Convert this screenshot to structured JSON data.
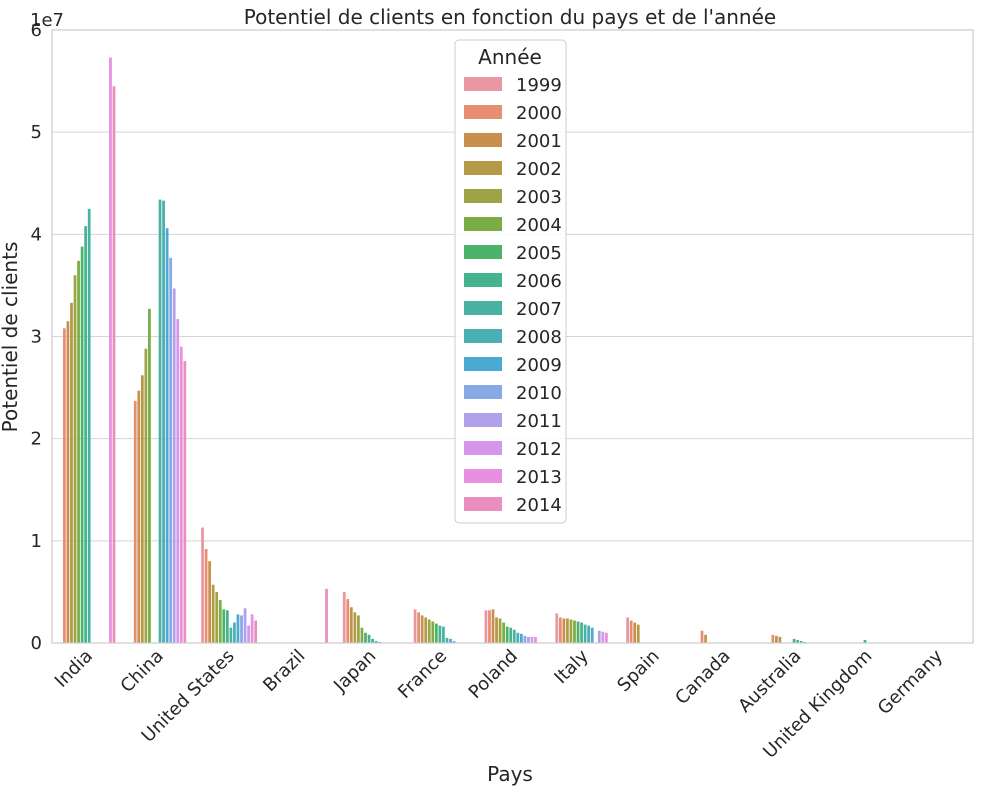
{
  "chart_data": {
    "type": "bar",
    "title": "Potentiel de clients en fonction du pays et de l'année",
    "xlabel": "Pays",
    "ylabel": "Potentiel de clients",
    "y_offset_text": "1e7",
    "ylim": [
      0,
      60000000
    ],
    "y_ticks": [
      0,
      10000000,
      20000000,
      30000000,
      40000000,
      50000000,
      60000000
    ],
    "y_tick_labels": [
      "0",
      "1",
      "2",
      "3",
      "4",
      "5",
      "6"
    ],
    "grid": "horizontal",
    "legend_position": "top-center",
    "legend_title": "Année",
    "categories": [
      "India",
      "China",
      "United States",
      "Brazil",
      "Japan",
      "France",
      "Poland",
      "Italy",
      "Spain",
      "Canada",
      "Australia",
      "United Kingdom",
      "Germany"
    ],
    "series": [
      {
        "name": "1999",
        "color": "#ea96a3",
        "values": [
          0,
          0,
          11300000,
          0,
          5000000,
          3300000,
          3200000,
          2900000,
          2500000,
          0,
          0,
          0,
          0
        ]
      },
      {
        "name": "2000",
        "color": "#e68e71",
        "values": [
          30800000,
          23700000,
          9200000,
          0,
          4300000,
          3000000,
          3200000,
          2500000,
          2200000,
          1200000,
          800000,
          0,
          0
        ]
      },
      {
        "name": "2001",
        "color": "#c88f4e",
        "values": [
          31500000,
          24700000,
          8000000,
          0,
          3500000,
          2700000,
          3300000,
          2400000,
          2000000,
          800000,
          700000,
          0,
          0
        ]
      },
      {
        "name": "2002",
        "color": "#b29a46",
        "values": [
          33300000,
          26200000,
          5700000,
          0,
          3000000,
          2500000,
          2500000,
          2400000,
          1800000,
          0,
          600000,
          0,
          0
        ]
      },
      {
        "name": "2003",
        "color": "#9da443",
        "values": [
          36000000,
          28800000,
          5000000,
          0,
          2700000,
          2300000,
          2400000,
          2300000,
          0,
          0,
          0,
          0,
          0
        ]
      },
      {
        "name": "2004",
        "color": "#7cac44",
        "values": [
          37400000,
          32700000,
          4200000,
          0,
          1500000,
          2100000,
          2000000,
          2200000,
          0,
          0,
          0,
          0,
          0
        ]
      },
      {
        "name": "2005",
        "color": "#4bb36a",
        "values": [
          38800000,
          0,
          3300000,
          0,
          1000000,
          1900000,
          1600000,
          2100000,
          0,
          0,
          0,
          0,
          0
        ]
      },
      {
        "name": "2006",
        "color": "#47b38e",
        "values": [
          40800000,
          0,
          3200000,
          0,
          800000,
          1700000,
          1500000,
          2000000,
          0,
          0,
          400000,
          300000,
          0
        ]
      },
      {
        "name": "2007",
        "color": "#49b2a2",
        "values": [
          42500000,
          43400000,
          1500000,
          0,
          400000,
          1600000,
          1300000,
          1800000,
          0,
          0,
          300000,
          0,
          0
        ]
      },
      {
        "name": "2008",
        "color": "#4baeb3",
        "values": [
          0,
          43300000,
          2000000,
          0,
          200000,
          500000,
          1000000,
          1700000,
          0,
          0,
          200000,
          0,
          0
        ]
      },
      {
        "name": "2009",
        "color": "#4aaad1",
        "values": [
          0,
          40600000,
          2800000,
          0,
          100000,
          400000,
          900000,
          1500000,
          0,
          0,
          100000,
          0,
          0
        ]
      },
      {
        "name": "2010",
        "color": "#88a8e6",
        "values": [
          0,
          37700000,
          2700000,
          0,
          0,
          200000,
          700000,
          0,
          0,
          0,
          0,
          0,
          0
        ]
      },
      {
        "name": "2011",
        "color": "#b0a1ea",
        "values": [
          0,
          34700000,
          3400000,
          0,
          0,
          0,
          600000,
          1200000,
          0,
          0,
          0,
          0,
          0
        ]
      },
      {
        "name": "2012",
        "color": "#d596eb",
        "values": [
          0,
          31700000,
          1700000,
          0,
          0,
          0,
          600000,
          1100000,
          0,
          0,
          0,
          0,
          0
        ]
      },
      {
        "name": "2013",
        "color": "#e78fe0",
        "values": [
          57300000,
          29000000,
          2800000,
          0,
          0,
          0,
          600000,
          1000000,
          0,
          0,
          0,
          0,
          0
        ]
      },
      {
        "name": "2014",
        "color": "#ea8fbd",
        "values": [
          54500000,
          27600000,
          2200000,
          5300000,
          0,
          0,
          0,
          0,
          0,
          0,
          0,
          0,
          0
        ]
      }
    ]
  }
}
